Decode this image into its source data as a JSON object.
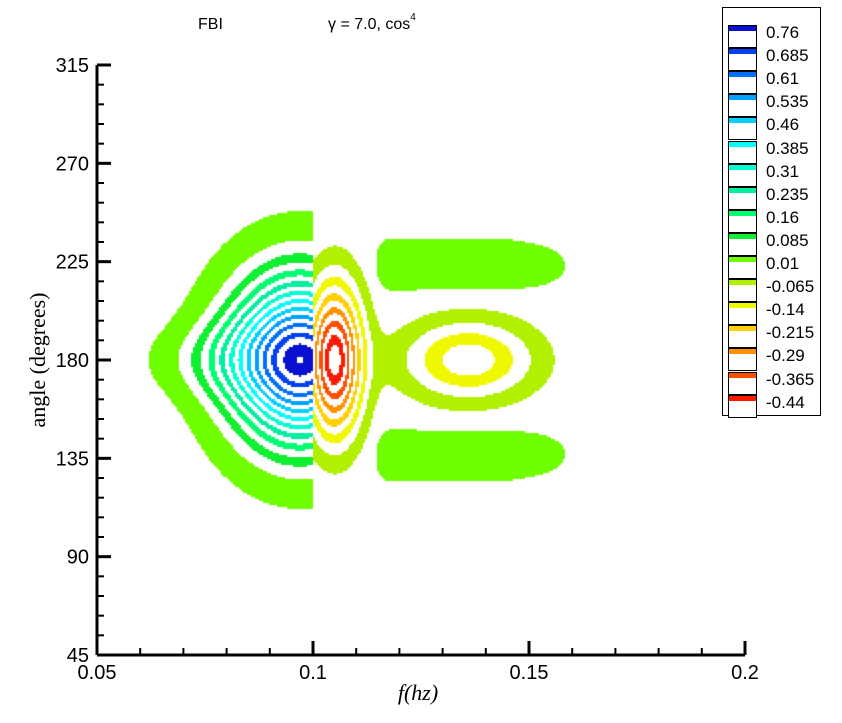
{
  "chart_data": {
    "type": "heatmap",
    "subtype": "filled-contour",
    "title_left": "FBI",
    "title_right": "γ = 7.0, cos",
    "title_superscript": "4",
    "xlabel": "f(hz)",
    "ylabel": "angle (degrees)",
    "xlim": [
      0.05,
      0.2
    ],
    "ylim": [
      45,
      315
    ],
    "xticks": [
      "0.05",
      "0.1",
      "0.15",
      "0.2"
    ],
    "yticks": [
      "45",
      "90",
      "135",
      "180",
      "225",
      "270",
      "315"
    ],
    "legend_position": "top-right",
    "levels": [
      {
        "value": "0.76",
        "color": "#0a10d0"
      },
      {
        "value": "0.685",
        "color": "#0040f0"
      },
      {
        "value": "0.61",
        "color": "#0070f8"
      },
      {
        "value": "0.535",
        "color": "#00a0ff"
      },
      {
        "value": "0.46",
        "color": "#00d0ff"
      },
      {
        "value": "0.385",
        "color": "#00ffff"
      },
      {
        "value": "0.31",
        "color": "#00ffd0"
      },
      {
        "value": "0.235",
        "color": "#00f0a0"
      },
      {
        "value": "0.16",
        "color": "#00ff70"
      },
      {
        "value": "0.085",
        "color": "#10f030"
      },
      {
        "value": "0.01",
        "color": "#70ff00"
      },
      {
        "value": "-0.065",
        "color": "#b0f000"
      },
      {
        "value": "-0.14",
        "color": "#f0f800"
      },
      {
        "value": "-0.215",
        "color": "#ffd000"
      },
      {
        "value": "-0.29",
        "color": "#ff9000"
      },
      {
        "value": "-0.365",
        "color": "#ff5000"
      },
      {
        "value": "-0.44",
        "color": "#ff1800"
      }
    ],
    "features": [
      {
        "name": "positive-lobe",
        "f": 0.093,
        "angle": 180,
        "peak": 0.78
      },
      {
        "name": "negative-lobe",
        "f": 0.106,
        "angle": 180,
        "peak": -0.45
      },
      {
        "name": "secondary-negative",
        "f": 0.135,
        "angle": 180,
        "peak": -0.16
      },
      {
        "name": "upper-arm",
        "f_range": [
          0.113,
          0.16
        ],
        "angle": 225,
        "peak": 0.04
      },
      {
        "name": "lower-arm",
        "f_range": [
          0.113,
          0.16
        ],
        "angle": 135,
        "peak": 0.04
      }
    ]
  }
}
